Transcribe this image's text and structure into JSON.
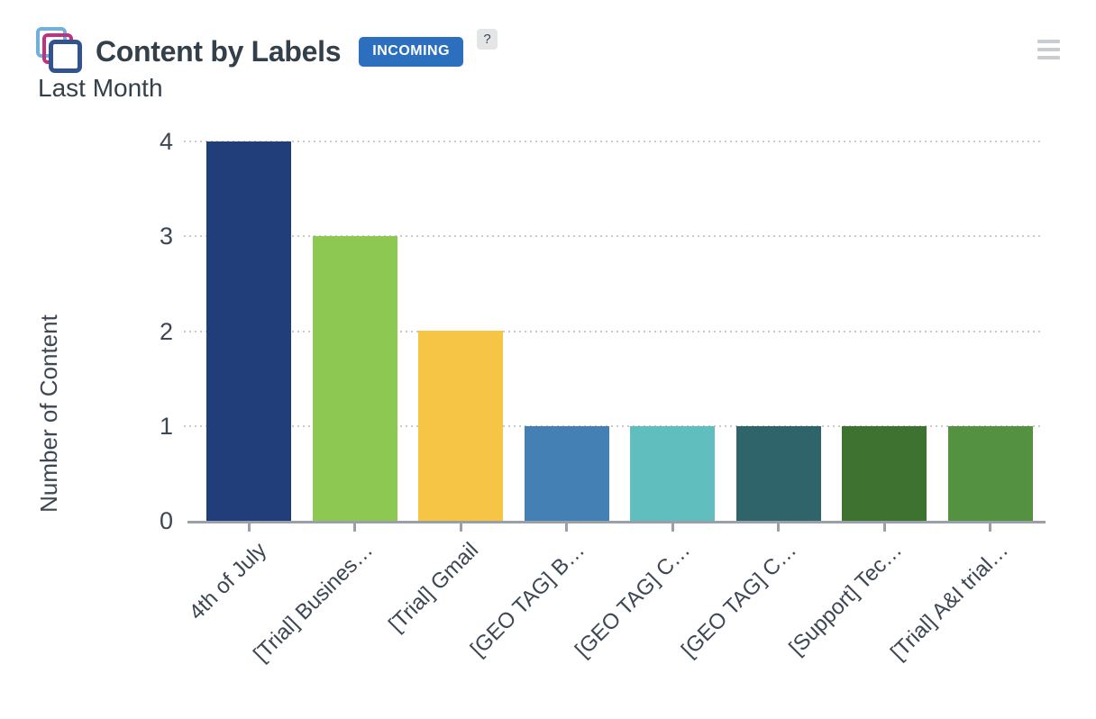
{
  "header": {
    "title": "Content by Labels",
    "badge": "INCOMING",
    "badge_color": "#2d6fbf",
    "help_label": "?",
    "subtitle": "Last Month"
  },
  "icons": {
    "gadget_icon": "layers-icon (three stacked rounded squares: light-blue #6fb0dd, magenta #c03181, navy #32538e)",
    "menu_icon": "hamburger-menu-icon",
    "help_icon": "question-mark-icon"
  },
  "chart_data": {
    "type": "bar",
    "title": "Content by Labels",
    "subtitle": "Last Month",
    "categories": [
      "4th of July",
      "[Trial] Busines…",
      "[Trial] Gmail",
      "[GEO TAG] B…",
      "[GEO TAG] C…",
      "[GEO TAG] C…",
      "[Support] Tec…",
      "[Trial] A&I trial…"
    ],
    "values": [
      4,
      3,
      2,
      1,
      1,
      1,
      1,
      1
    ],
    "bar_colors": [
      "#213e7b",
      "#8dc853",
      "#f6c545",
      "#4480b4",
      "#60bfbe",
      "#2f646a",
      "#3e7230",
      "#549140"
    ],
    "xlabel": "",
    "ylabel": "Number of Content",
    "ylim": [
      0,
      4
    ],
    "yticks": [
      0,
      1,
      2,
      3,
      4
    ],
    "grid": "horizontal dotted",
    "grid_color": "#c6ccca",
    "axis_color": "#9aa0a8",
    "legend": "none",
    "xlabel_rotation_deg": -45
  }
}
